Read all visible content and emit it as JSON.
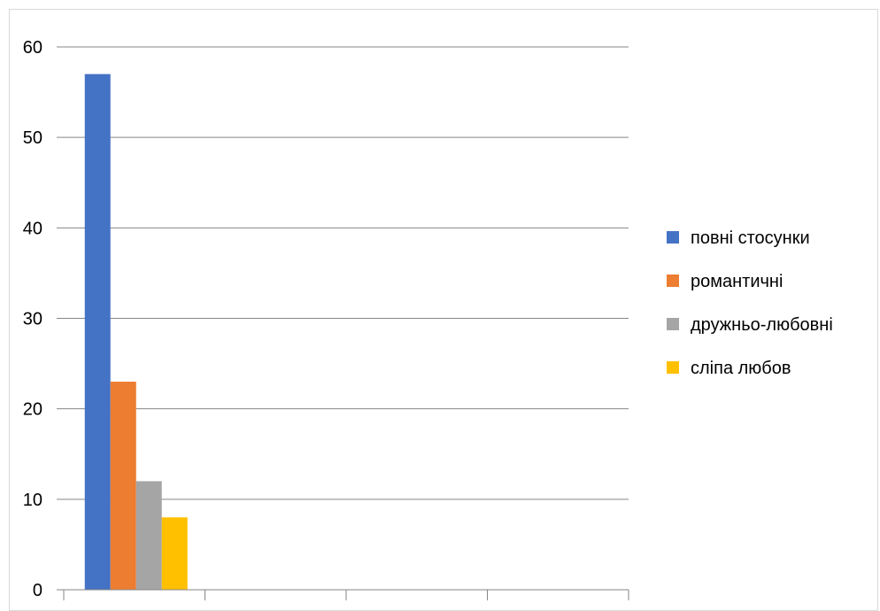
{
  "chart_data": {
    "type": "bar",
    "categories": [
      ""
    ],
    "series": [
      {
        "name": "повні стосунки",
        "color": "#4472C4",
        "values": [
          57
        ]
      },
      {
        "name": "романтичні",
        "color": "#ED7D31",
        "values": [
          23
        ]
      },
      {
        "name": "дружньо-любовні",
        "color": "#A5A5A5",
        "values": [
          12
        ]
      },
      {
        "name": "сліпа любов",
        "color": "#FFC000",
        "values": [
          8
        ]
      }
    ],
    "y_ticks": [
      "0",
      "10",
      "20",
      "30",
      "40",
      "50",
      "60"
    ],
    "ylim": [
      0,
      60
    ],
    "grid": true,
    "legend": "right",
    "title": "",
    "xlabel": "",
    "ylabel": ""
  }
}
